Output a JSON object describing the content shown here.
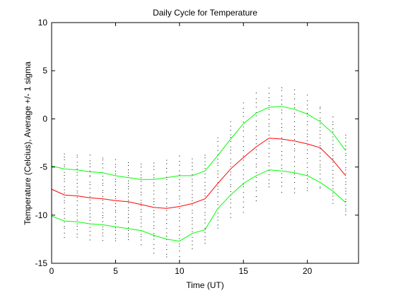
{
  "chart_data": {
    "type": "line",
    "title": "Daily Cycle for Temperature",
    "xlabel": "Time (UT)",
    "ylabel": "Temperature (Celcius), Average +/- 1 sigma",
    "xlim": [
      0,
      24
    ],
    "ylim": [
      -15,
      10
    ],
    "xticks": [
      0,
      5,
      10,
      15,
      20
    ],
    "yticks": [
      -15,
      -10,
      -5,
      0,
      5,
      10
    ],
    "grid": false,
    "legend": "none",
    "x": [
      0,
      1,
      2,
      3,
      4,
      5,
      6,
      7,
      8,
      9,
      10,
      11,
      12,
      13,
      14,
      15,
      16,
      17,
      18,
      19,
      20,
      21,
      22,
      23
    ],
    "series": [
      {
        "role": "average",
        "color": "#ff0000",
        "values": [
          -7.3,
          -7.9,
          -8.0,
          -8.2,
          -8.3,
          -8.5,
          -8.6,
          -8.9,
          -9.2,
          -9.3,
          -9.1,
          -8.8,
          -8.3,
          -6.7,
          -5.2,
          -4.0,
          -2.9,
          -2.0,
          -2.1,
          -2.3,
          -2.6,
          -3.0,
          -4.3,
          -5.9
        ]
      },
      {
        "role": "average plus 1 sigma",
        "color": "#00ff00",
        "values": [
          -4.9,
          -5.2,
          -5.3,
          -5.5,
          -5.6,
          -5.9,
          -6.1,
          -6.3,
          -6.3,
          -6.1,
          -5.9,
          -5.9,
          -5.4,
          -3.8,
          -2.1,
          -0.5,
          0.6,
          1.2,
          1.3,
          1.0,
          0.5,
          -0.3,
          -1.5,
          -3.3
        ]
      },
      {
        "role": "average minus 1 sigma",
        "color": "#00ff00",
        "values": [
          -10.1,
          -10.6,
          -10.7,
          -10.9,
          -11.0,
          -11.2,
          -11.4,
          -11.6,
          -12.1,
          -12.5,
          -12.7,
          -11.9,
          -11.5,
          -9.3,
          -7.9,
          -6.7,
          -5.9,
          -5.3,
          -5.4,
          -5.6,
          -5.9,
          -6.6,
          -7.5,
          -8.7
        ]
      }
    ],
    "scatter": {
      "color": "#000000",
      "spread_sigma": 1.6
    }
  }
}
